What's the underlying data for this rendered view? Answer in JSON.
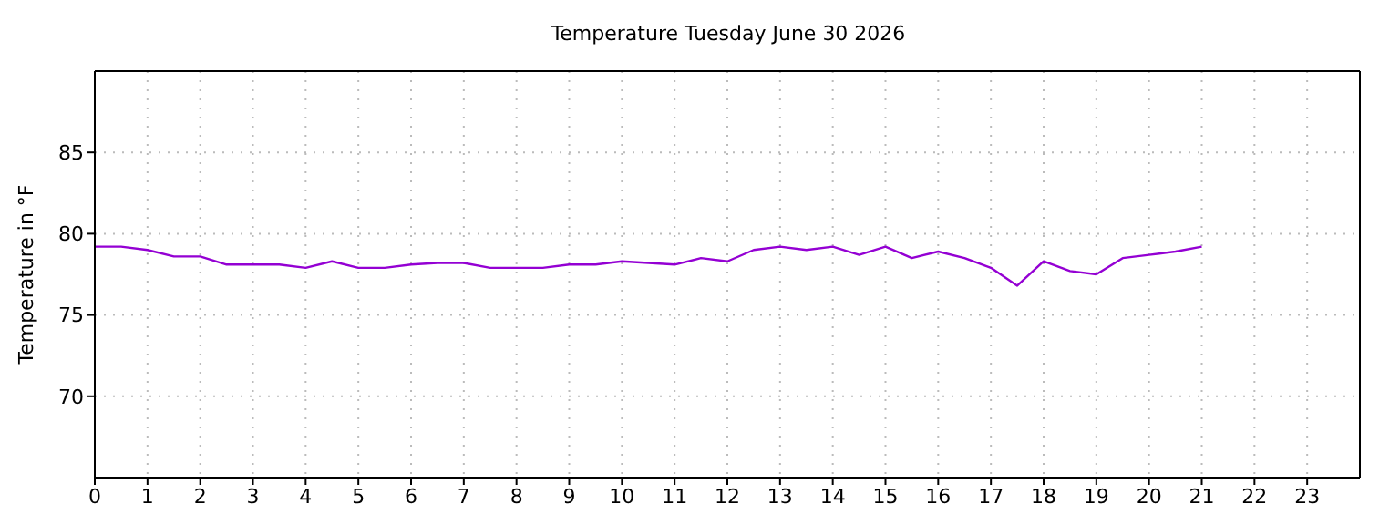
{
  "chart_data": {
    "type": "line",
    "title": "Temperature Tuesday June 30 2026",
    "ylabel": "Temperature in °F",
    "x": [
      0,
      0.5,
      1,
      1.5,
      2,
      2.5,
      3,
      3.5,
      4,
      4.5,
      5,
      5.5,
      6,
      6.5,
      7,
      7.5,
      8,
      8.5,
      9,
      9.5,
      10,
      10.5,
      11,
      11.5,
      12,
      12.5,
      13,
      13.5,
      14,
      14.5,
      15,
      15.5,
      16,
      16.5,
      17,
      17.5,
      18,
      18.5,
      19,
      19.5,
      20,
      20.5,
      21
    ],
    "series": [
      {
        "color": "#9400d3",
        "values": [
          79.2,
          79.2,
          79.0,
          78.6,
          78.6,
          78.1,
          78.1,
          78.1,
          77.9,
          78.3,
          77.9,
          77.9,
          78.1,
          78.2,
          78.2,
          77.9,
          77.9,
          77.9,
          78.1,
          78.1,
          78.3,
          78.2,
          78.1,
          78.5,
          78.3,
          79.0,
          79.2,
          79.0,
          79.2,
          78.7,
          79.2,
          78.5,
          78.9,
          78.5,
          77.9,
          76.8,
          78.3,
          77.7,
          77.5,
          78.5,
          78.7,
          78.9,
          79.2
        ]
      }
    ],
    "xlim": [
      0,
      24
    ],
    "xticks": [
      0,
      1,
      2,
      3,
      4,
      5,
      6,
      7,
      8,
      9,
      10,
      11,
      12,
      13,
      14,
      15,
      16,
      17,
      18,
      19,
      20,
      21,
      22,
      23
    ],
    "ylim": [
      65,
      90
    ],
    "yticks": [
      70,
      75,
      80,
      85
    ],
    "grid": true,
    "legend": false,
    "marker": "none",
    "line_style": "solid"
  }
}
